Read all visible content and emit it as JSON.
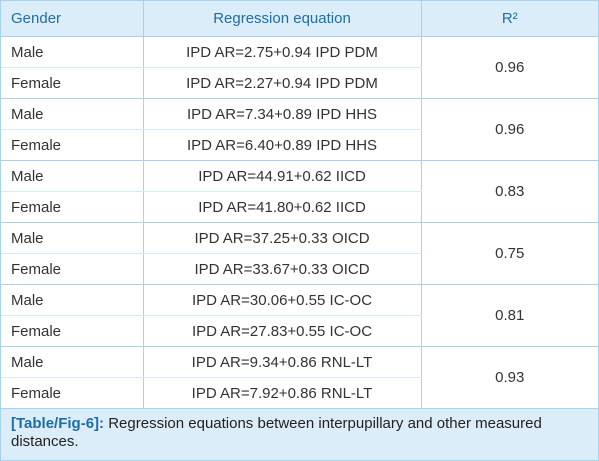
{
  "table": {
    "headers": {
      "gender": "Gender",
      "equation": "Regression equation",
      "r2": "R²"
    },
    "groups": [
      {
        "r2": "0.96",
        "rows": [
          {
            "gender": "Male",
            "equation": "IPD AR=2.75+0.94 IPD PDM"
          },
          {
            "gender": "Female",
            "equation": "IPD AR=2.27+0.94 IPD PDM"
          }
        ]
      },
      {
        "r2": "0.96",
        "rows": [
          {
            "gender": "Male",
            "equation": "IPD AR=7.34+0.89 IPD HHS"
          },
          {
            "gender": "Female",
            "equation": "IPD AR=6.40+0.89 IPD HHS"
          }
        ]
      },
      {
        "r2": "0.83",
        "rows": [
          {
            "gender": "Male",
            "equation": "IPD AR=44.91+0.62 IICD"
          },
          {
            "gender": "Female",
            "equation": "IPD AR=41.80+0.62 IICD"
          }
        ]
      },
      {
        "r2": "0.75",
        "rows": [
          {
            "gender": "Male",
            "equation": "IPD AR=37.25+0.33 OICD"
          },
          {
            "gender": "Female",
            "equation": "IPD AR=33.67+0.33 OICD"
          }
        ]
      },
      {
        "r2": "0.81",
        "rows": [
          {
            "gender": "Male",
            "equation": "IPD AR=30.06+0.55 IC-OC"
          },
          {
            "gender": "Female",
            "equation": "IPD AR=27.83+0.55 IC-OC"
          }
        ]
      },
      {
        "r2": "0.93",
        "rows": [
          {
            "gender": "Male",
            "equation": "IPD AR=9.34+0.86 RNL-LT"
          },
          {
            "gender": "Female",
            "equation": "IPD AR=7.92+0.86 RNL-LT"
          }
        ]
      }
    ]
  },
  "caption": {
    "label": "[Table/Fig-6]:",
    "text": "Regression equations between interpupillary and other measured distances."
  },
  "colors": {
    "header_bg": "#dbedf9",
    "header_text": "#1d6ea8",
    "border": "#a7d2ee"
  }
}
